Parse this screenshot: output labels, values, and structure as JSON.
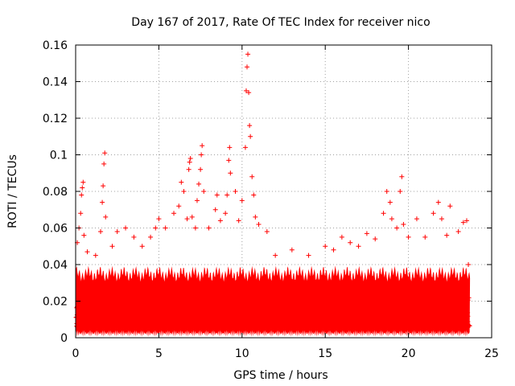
{
  "chart_data": {
    "type": "scatter",
    "title": "Day 167 of 2017, Rate Of TEC Index for receiver nico",
    "xlabel": "GPS time / hours",
    "ylabel": "ROTI / TECUs",
    "xlim": [
      0,
      25
    ],
    "ylim": [
      0,
      0.16
    ],
    "xticks": [
      0,
      5,
      10,
      15,
      20,
      25
    ],
    "yticks": [
      0,
      0.02,
      0.04,
      0.06,
      0.08,
      0.1,
      0.12,
      0.14,
      0.16
    ],
    "xtick_labels": [
      "0",
      "5",
      "10",
      "15",
      "20",
      "25"
    ],
    "ytick_labels": [
      "0",
      "0.02",
      "0.04",
      "0.06",
      "0.08",
      "0.1",
      "0.12",
      "0.14",
      "0.16"
    ],
    "grid": true,
    "marker": "+",
    "color": "#ff0000",
    "x_range_observed": [
      0,
      23.7
    ],
    "typical_range": [
      0.005,
      0.035
    ],
    "series": [
      {
        "name": "ROTI",
        "points": [
          [
            0.1,
            0.052
          ],
          [
            0.2,
            0.06
          ],
          [
            0.3,
            0.068
          ],
          [
            0.35,
            0.078
          ],
          [
            0.4,
            0.082
          ],
          [
            0.45,
            0.085
          ],
          [
            0.5,
            0.056
          ],
          [
            0.7,
            0.047
          ],
          [
            1.2,
            0.045
          ],
          [
            1.5,
            0.058
          ],
          [
            1.6,
            0.074
          ],
          [
            1.65,
            0.083
          ],
          [
            1.7,
            0.095
          ],
          [
            1.75,
            0.101
          ],
          [
            1.8,
            0.066
          ],
          [
            2.2,
            0.05
          ],
          [
            2.5,
            0.058
          ],
          [
            3.0,
            0.06
          ],
          [
            3.5,
            0.055
          ],
          [
            4.0,
            0.05
          ],
          [
            4.5,
            0.055
          ],
          [
            4.8,
            0.06
          ],
          [
            5.0,
            0.065
          ],
          [
            5.4,
            0.06
          ],
          [
            5.9,
            0.068
          ],
          [
            6.2,
            0.072
          ],
          [
            6.35,
            0.085
          ],
          [
            6.5,
            0.08
          ],
          [
            6.7,
            0.065
          ],
          [
            6.8,
            0.092
          ],
          [
            6.85,
            0.096
          ],
          [
            6.9,
            0.098
          ],
          [
            7.0,
            0.066
          ],
          [
            7.2,
            0.06
          ],
          [
            7.3,
            0.075
          ],
          [
            7.4,
            0.084
          ],
          [
            7.5,
            0.092
          ],
          [
            7.55,
            0.1
          ],
          [
            7.6,
            0.105
          ],
          [
            7.7,
            0.08
          ],
          [
            8.0,
            0.06
          ],
          [
            8.4,
            0.07
          ],
          [
            8.5,
            0.078
          ],
          [
            8.7,
            0.064
          ],
          [
            9.0,
            0.068
          ],
          [
            9.1,
            0.078
          ],
          [
            9.2,
            0.097
          ],
          [
            9.25,
            0.104
          ],
          [
            9.3,
            0.09
          ],
          [
            9.6,
            0.08
          ],
          [
            9.8,
            0.064
          ],
          [
            10.0,
            0.075
          ],
          [
            10.2,
            0.104
          ],
          [
            10.25,
            0.135
          ],
          [
            10.3,
            0.148
          ],
          [
            10.35,
            0.155
          ],
          [
            10.4,
            0.134
          ],
          [
            10.45,
            0.116
          ],
          [
            10.5,
            0.11
          ],
          [
            10.6,
            0.088
          ],
          [
            10.7,
            0.078
          ],
          [
            10.8,
            0.066
          ],
          [
            11.0,
            0.062
          ],
          [
            11.5,
            0.058
          ],
          [
            12.0,
            0.045
          ],
          [
            13.0,
            0.048
          ],
          [
            14.0,
            0.045
          ],
          [
            15.0,
            0.05
          ],
          [
            15.5,
            0.048
          ],
          [
            16.0,
            0.055
          ],
          [
            16.5,
            0.052
          ],
          [
            17.0,
            0.05
          ],
          [
            17.5,
            0.057
          ],
          [
            18.0,
            0.054
          ],
          [
            18.5,
            0.068
          ],
          [
            18.7,
            0.08
          ],
          [
            18.9,
            0.074
          ],
          [
            19.0,
            0.065
          ],
          [
            19.3,
            0.06
          ],
          [
            19.5,
            0.08
          ],
          [
            19.6,
            0.088
          ],
          [
            19.7,
            0.062
          ],
          [
            20.0,
            0.055
          ],
          [
            20.5,
            0.065
          ],
          [
            21.0,
            0.055
          ],
          [
            21.5,
            0.068
          ],
          [
            21.8,
            0.074
          ],
          [
            22.0,
            0.065
          ],
          [
            22.3,
            0.056
          ],
          [
            22.5,
            0.072
          ],
          [
            23.0,
            0.058
          ],
          [
            23.3,
            0.063
          ],
          [
            23.5,
            0.064
          ],
          [
            23.6,
            0.04
          ]
        ]
      }
    ]
  }
}
